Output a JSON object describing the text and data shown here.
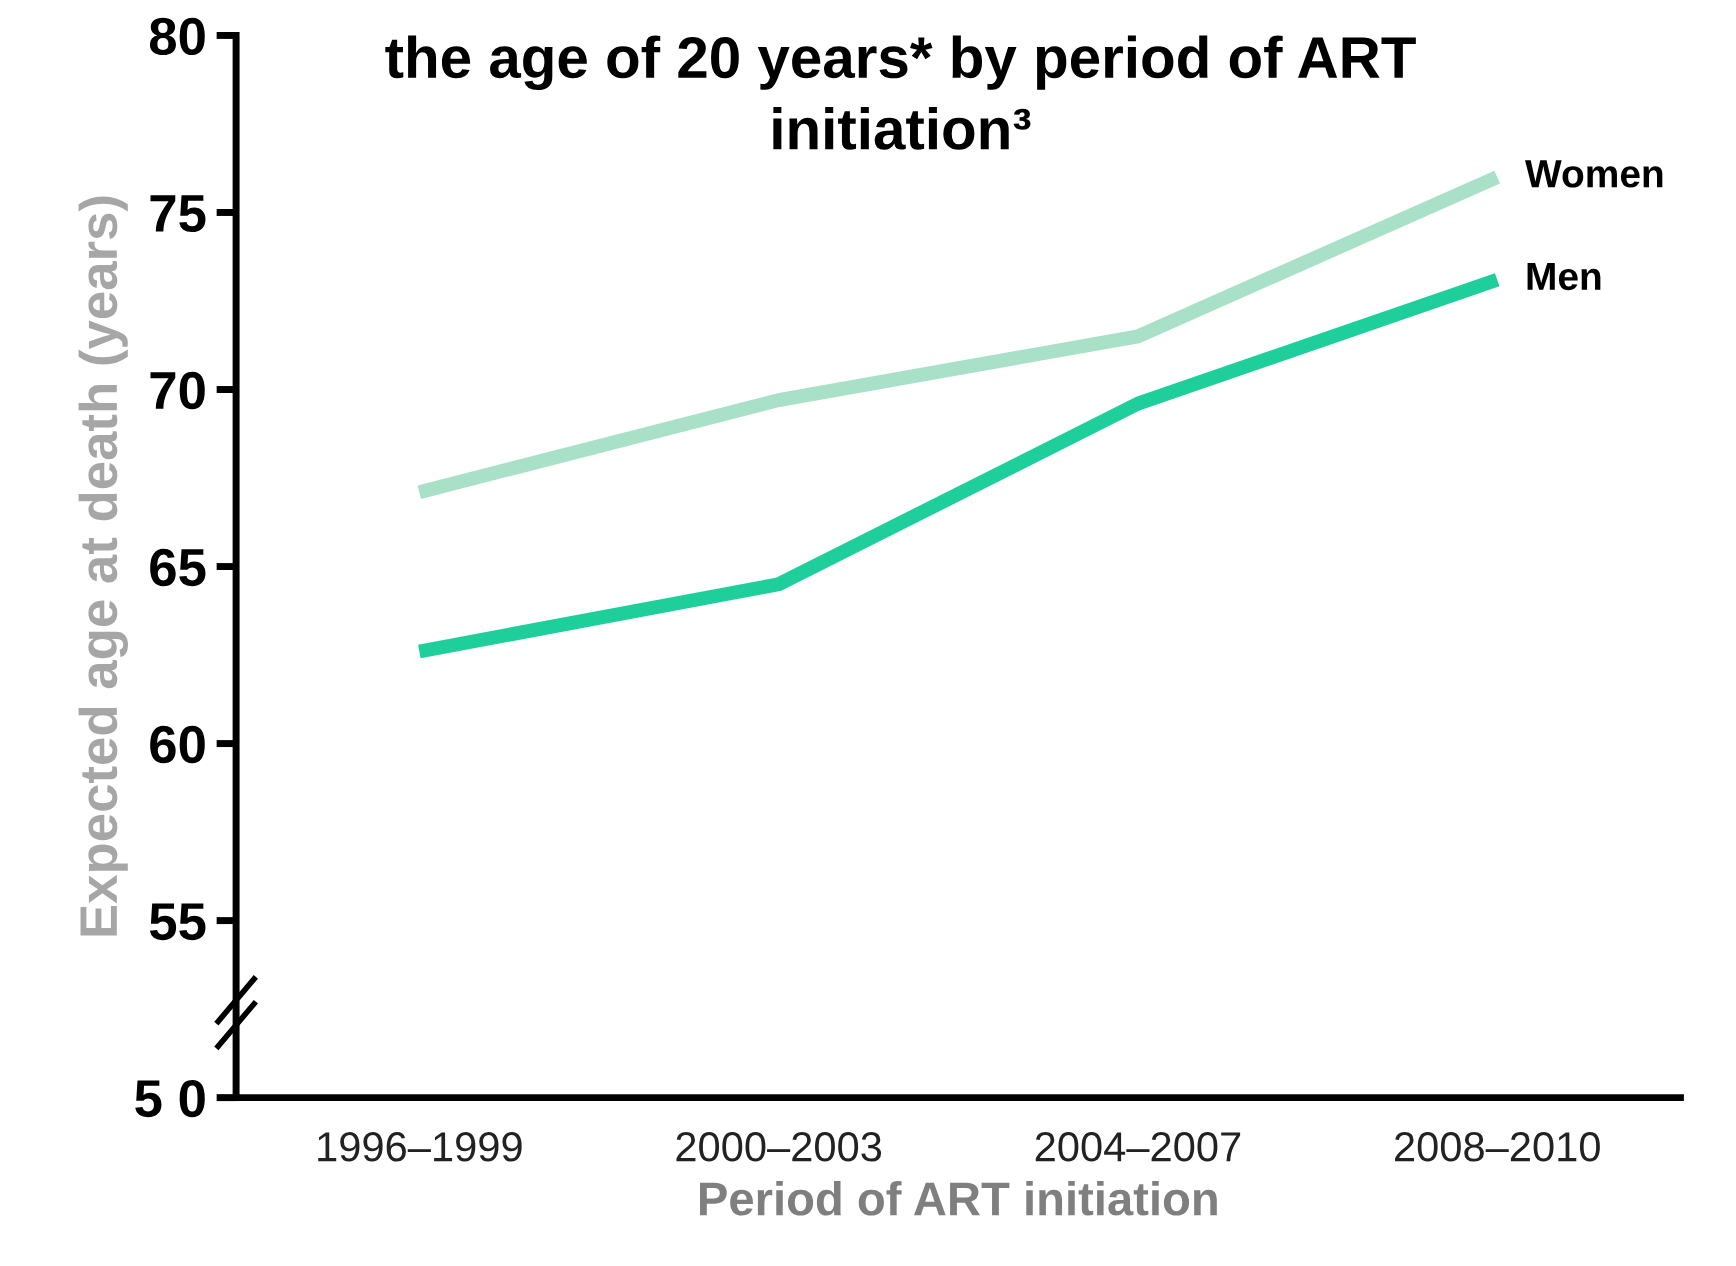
{
  "chart_data": {
    "type": "line",
    "title": "the age of 20 years* by period of ART\ninitiation³",
    "xlabel": "Period of ART initiation",
    "ylabel": "Expected age at death (years)",
    "categories": [
      "1996–1999",
      "2000–2003",
      "2004–2007",
      "2008–2010"
    ],
    "series": [
      {
        "name": "Women",
        "color": "#a8e0c8",
        "values": [
          67.1,
          69.7,
          71.5,
          76.0
        ]
      },
      {
        "name": "Men",
        "color": "#1ecf9c",
        "values": [
          62.6,
          64.5,
          69.6,
          73.1
        ]
      }
    ],
    "ylim": [
      50,
      80
    ],
    "yticks": [
      {
        "value": 50,
        "label": "5 0"
      },
      55,
      60,
      65,
      70,
      75,
      80
    ],
    "grid": false,
    "legend": false,
    "marker": "none",
    "line_style": "solid"
  }
}
